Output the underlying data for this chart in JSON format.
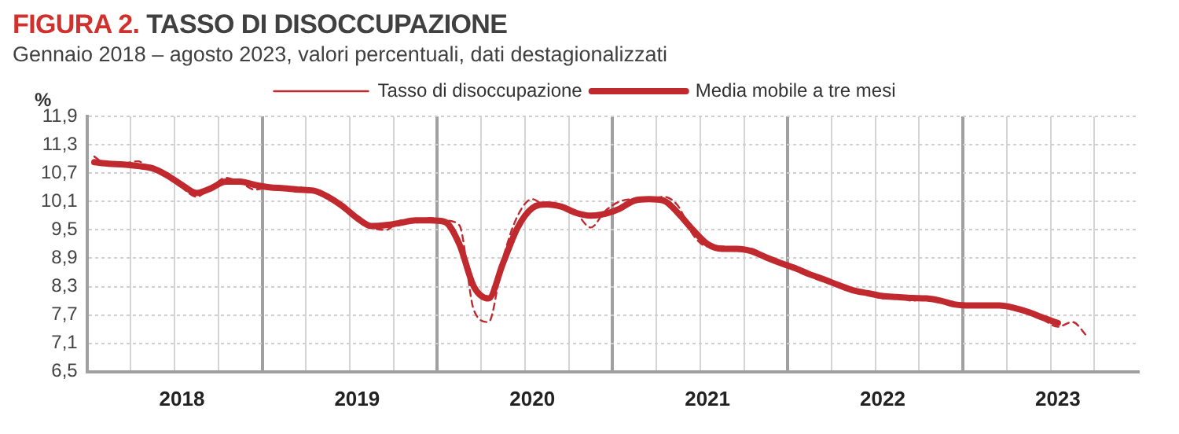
{
  "chart_data": {
    "type": "line",
    "title": "FIGURA 2. TASSO DI DISOCCUPAZIONE",
    "subtitle": "Gennaio 2018 – agosto 2023, valori percentuali, dati destagionalizzati",
    "ylabel": "%",
    "categories": [
      null,
      null,
      null,
      null,
      null,
      null,
      "2018",
      null,
      null,
      null,
      null,
      null,
      null,
      null,
      null,
      null,
      null,
      null,
      "2019",
      null,
      null,
      null,
      null,
      null,
      null,
      null,
      null,
      null,
      null,
      null,
      "2020",
      null,
      null,
      null,
      null,
      null,
      null,
      null,
      null,
      null,
      null,
      null,
      "2021",
      null,
      null,
      null,
      null,
      null,
      null,
      null,
      null,
      null,
      null,
      null,
      "2022",
      null,
      null,
      null,
      null,
      null,
      null,
      null,
      null,
      null,
      null,
      null,
      "2023",
      null,
      null,
      null,
      null,
      null
    ],
    "series": [
      {
        "name": "Tasso di disoccupazione",
        "color": "#c0292e",
        "line_style": "dashed",
        "values": [
          11.05,
          10.85,
          10.9,
          10.95,
          10.75,
          10.7,
          10.4,
          10.2,
          10.4,
          10.6,
          10.5,
          10.35,
          10.4,
          10.4,
          10.4,
          10.3,
          10.25,
          10.0,
          9.75,
          9.55,
          9.5,
          9.7,
          9.65,
          9.75,
          9.7,
          9.6,
          7.8,
          7.55,
          8.9,
          9.8,
          10.15,
          10.0,
          10.0,
          9.85,
          9.55,
          9.9,
          10.1,
          10.15,
          10.15,
          10.2,
          10.0,
          9.4,
          9.15,
          9.15,
          9.05,
          9.1,
          8.9,
          8.8,
          8.7,
          8.55,
          8.45,
          8.3,
          8.2,
          8.15,
          8.05,
          8.1,
          8.0,
          8.05,
          8.0,
          7.92,
          7.9,
          7.9,
          7.9,
          7.85,
          7.75,
          7.6,
          7.45,
          7.55,
          7.25,
          null,
          null,
          null
        ]
      },
      {
        "name": "Media mobile a tre mesi",
        "color": "#c0292e",
        "line_style": "solid",
        "values": [
          10.93,
          10.9,
          10.88,
          10.85,
          10.8,
          10.65,
          10.45,
          10.28,
          10.38,
          10.52,
          10.52,
          10.45,
          10.4,
          10.38,
          10.35,
          10.33,
          10.2,
          10.0,
          9.75,
          9.58,
          9.6,
          9.65,
          9.7,
          9.7,
          9.67,
          9.2,
          8.3,
          8.05,
          8.8,
          9.55,
          9.96,
          10.04,
          9.99,
          9.86,
          9.8,
          9.84,
          9.95,
          10.12,
          10.15,
          10.12,
          9.85,
          9.5,
          9.2,
          9.1,
          9.1,
          9.05,
          8.92,
          8.8,
          8.69,
          8.56,
          8.45,
          8.33,
          8.22,
          8.16,
          8.1,
          8.08,
          8.06,
          8.05,
          8.0,
          7.92,
          7.9,
          7.9,
          7.9,
          7.85,
          7.76,
          7.64,
          7.53,
          null,
          null,
          null,
          null,
          null
        ]
      }
    ],
    "ylim": [
      6.5,
      11.9
    ],
    "yticks": [
      {
        "value": 6.5,
        "label": "6,5"
      },
      {
        "value": 7.1,
        "label": "7,1"
      },
      {
        "value": 7.7,
        "label": "7,7"
      },
      {
        "value": 8.3,
        "label": "8,3"
      },
      {
        "value": 8.9,
        "label": "8,9"
      },
      {
        "value": 9.5,
        "label": "9,5"
      },
      {
        "value": 10.1,
        "label": "10,1"
      },
      {
        "value": 10.7,
        "label": "10,7"
      },
      {
        "value": 11.3,
        "label": "11,3"
      },
      {
        "value": 11.9,
        "label": "11,9"
      }
    ],
    "grid": true,
    "legend": "top",
    "marker": "none"
  }
}
